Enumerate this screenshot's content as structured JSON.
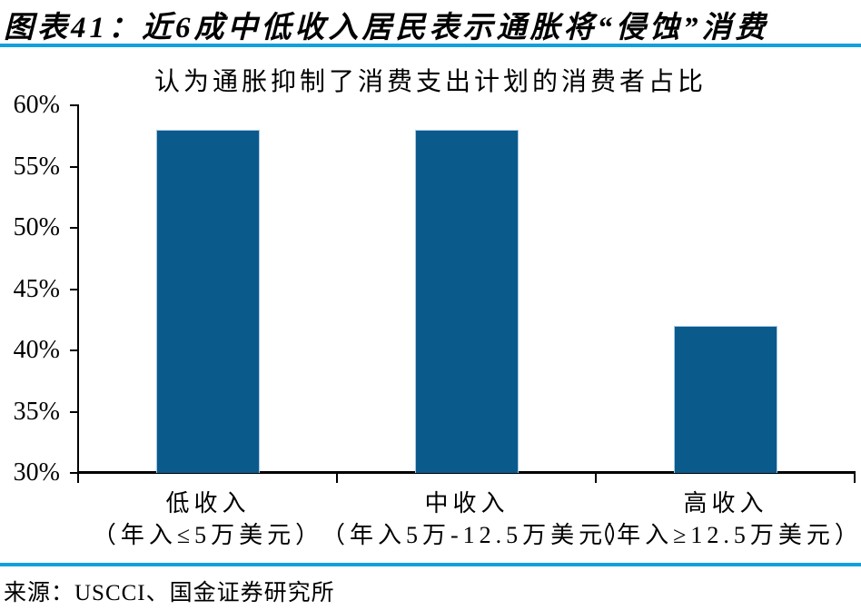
{
  "header": {
    "title": "图表41：近6成中低收入居民表示通胀将“侵蚀”消费"
  },
  "source": {
    "text": "来源：USCCI、国金证券研究所"
  },
  "colors": {
    "rule_blue": "#12A0DC",
    "axis": "#000000",
    "text": "#000000"
  },
  "chart_data": {
    "type": "bar",
    "title": "认为通胀抑制了消费支出计划的消费者占比",
    "categories": [
      "低收入",
      "中收入",
      "高收入"
    ],
    "category_sublabels": [
      "（年入≤5万美元）",
      "（年入5万-12.5万美元）",
      "（年入≥12.5万美元）"
    ],
    "values": [
      58,
      58,
      42
    ],
    "unit": "%",
    "xlabel": "",
    "ylabel": "",
    "ylim": [
      30,
      60
    ],
    "y_ticks": [
      "30%",
      "35%",
      "40%",
      "45%",
      "50%",
      "55%",
      "60%"
    ],
    "grid": false,
    "legend": "none",
    "bar_color": "#0B5A8C",
    "bar_border_color": "#A9C9E6"
  }
}
